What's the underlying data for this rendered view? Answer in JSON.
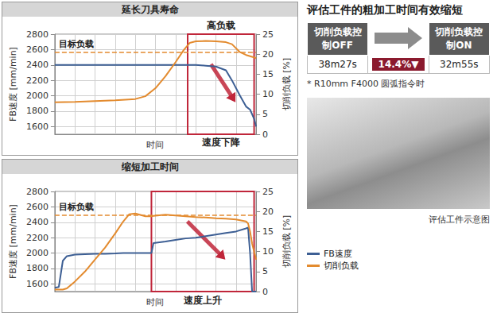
{
  "chart_data": [
    {
      "type": "line",
      "title": "延长刀具寿命",
      "x_label": "时间",
      "y_label": "FB速度 [mm/min]",
      "y2_label": "切削负载 [%]",
      "x": [
        0,
        10,
        20,
        30,
        40,
        45,
        50,
        55,
        60,
        64,
        67,
        70,
        75,
        80,
        85,
        88,
        92,
        95,
        97,
        99,
        100
      ],
      "xlim": [
        0,
        100
      ],
      "xticks": [
        0,
        10,
        20,
        30,
        40,
        50,
        60,
        70,
        80,
        90,
        100
      ],
      "ylim": [
        1500,
        2800
      ],
      "yticks": [
        1600,
        1800,
        2000,
        2200,
        2400,
        2600,
        2800
      ],
      "y2lim": [
        0,
        25
      ],
      "y2ticks": [
        0,
        5,
        10,
        15,
        20,
        25
      ],
      "grid": true,
      "tick_labels": "y",
      "series": [
        {
          "name": "FB速度",
          "color": "#3d5f94",
          "values": [
            2400,
            2400,
            2400,
            2400,
            2400,
            2400,
            2400,
            2400,
            2400,
            2400,
            2400,
            2400,
            2390,
            2380,
            2330,
            2200,
            2000,
            1860,
            1820,
            1700,
            1600
          ]
        },
        {
          "name": "切削负载",
          "color": "#e38b2f",
          "axis": "y2",
          "values": [
            8.0,
            8.1,
            8.3,
            8.5,
            8.8,
            9.5,
            11.5,
            14.5,
            18,
            21,
            22.8,
            23.2,
            23.3,
            23.2,
            23,
            22.5,
            20.5,
            19.8,
            19.5,
            19.2,
            19
          ]
        }
      ],
      "annotations": [
        {
          "text": "目标负载",
          "y2": 20.5,
          "line_style": "dashed"
        },
        {
          "text": "高负载",
          "x_range": [
            66,
            99
          ]
        },
        {
          "text": "速度下降",
          "x_range": [
            66,
            99
          ]
        }
      ]
    },
    {
      "type": "line",
      "title": "缩短加工时间",
      "x_label": "时间",
      "y_label": "FB速度 [mm/min]",
      "y2_label": "切削负载 [%]",
      "x": [
        0,
        2,
        4,
        6,
        10,
        15,
        20,
        25,
        30,
        34,
        37,
        40,
        45,
        48,
        49,
        55,
        60,
        65,
        70,
        75,
        80,
        85,
        90,
        95,
        96,
        97,
        98,
        100
      ],
      "xlim": [
        0,
        100
      ],
      "xticks": [
        0,
        10,
        20,
        30,
        40,
        50,
        60,
        70,
        80,
        90,
        100
      ],
      "ylim": [
        1500,
        2800
      ],
      "yticks": [
        1600,
        1800,
        2000,
        2200,
        2400,
        2600,
        2800
      ],
      "y2lim": [
        0,
        25
      ],
      "y2ticks": [
        0,
        5,
        10,
        15,
        20,
        25
      ],
      "grid": true,
      "tick_labels": "y",
      "series": [
        {
          "name": "FB速度",
          "color": "#3d5f94",
          "values": [
            1550,
            1560,
            1900,
            1960,
            1980,
            1985,
            1990,
            1990,
            1995,
            2000,
            2000,
            2000,
            2000,
            2000,
            2130,
            2150,
            2170,
            2190,
            2200,
            2220,
            2240,
            2260,
            2280,
            2320,
            2330,
            2000,
            1500,
            1500
          ]
        },
        {
          "name": "切削负载",
          "color": "#e38b2f",
          "axis": "y2",
          "values": [
            0.5,
            0.5,
            0.5,
            0.8,
            2.5,
            5,
            8,
            11,
            14.5,
            17.5,
            19.3,
            19.5,
            18.8,
            18.8,
            18.9,
            19.2,
            19,
            18.8,
            18.6,
            18.5,
            18.3,
            18.2,
            18,
            17.5,
            17,
            15,
            12,
            8
          ]
        }
      ],
      "annotations": [
        {
          "text": "目标负载",
          "y2": 19,
          "line_style": "dashed"
        },
        {
          "text": "速度上升",
          "x_range": [
            48,
            99
          ]
        }
      ]
    }
  ],
  "summary": {
    "title": "评估工件的粗加工时间有效缩短",
    "table": {
      "header": [
        "切削负载控制OFF",
        "切削负载控制ON"
      ],
      "rows": [
        [
          "38m27s",
          "14.4%▼",
          "32m55s"
        ]
      ]
    },
    "note": "* R10mm F4000 圆弧指令时",
    "image_caption": "评估工件示意图"
  }
}
